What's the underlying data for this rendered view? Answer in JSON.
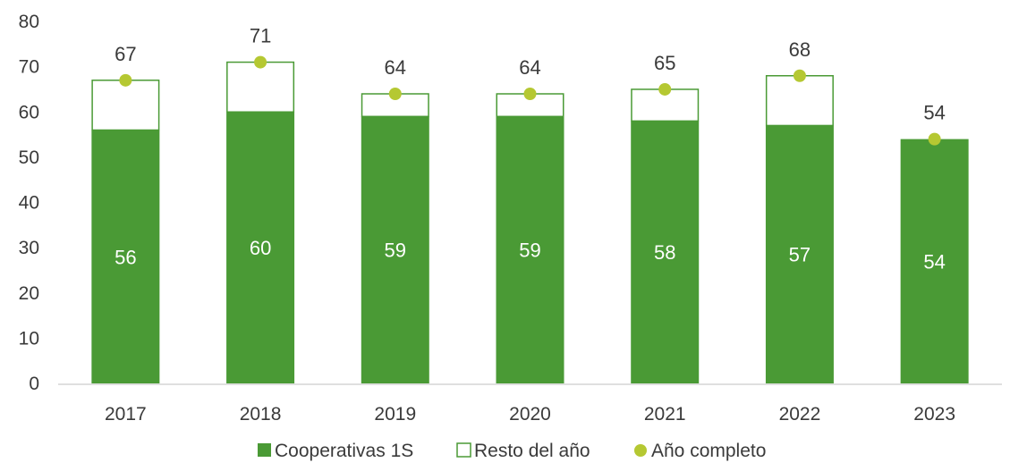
{
  "chart_data": {
    "type": "bar",
    "categories": [
      "2017",
      "2018",
      "2019",
      "2020",
      "2021",
      "2022",
      "2023"
    ],
    "series": [
      {
        "name": "Cooperativas 1S",
        "values": [
          56,
          60,
          59,
          59,
          58,
          57,
          54
        ],
        "color": "#4a9a35"
      },
      {
        "name": "Resto del año",
        "values": [
          11,
          11,
          5,
          5,
          7,
          11,
          0
        ],
        "color": "#ffffff",
        "stroke": "#4a9a35"
      },
      {
        "name": "Año completo",
        "values": [
          67,
          71,
          64,
          64,
          65,
          68,
          54
        ],
        "color": "#b5c832",
        "type": "scatter"
      }
    ],
    "ylim": [
      0,
      80
    ],
    "yticks": [
      "0",
      "10",
      "20",
      "30",
      "40",
      "50",
      "60",
      "70",
      "80"
    ],
    "grid": false,
    "legend_position": "bottom",
    "stacked": true
  }
}
